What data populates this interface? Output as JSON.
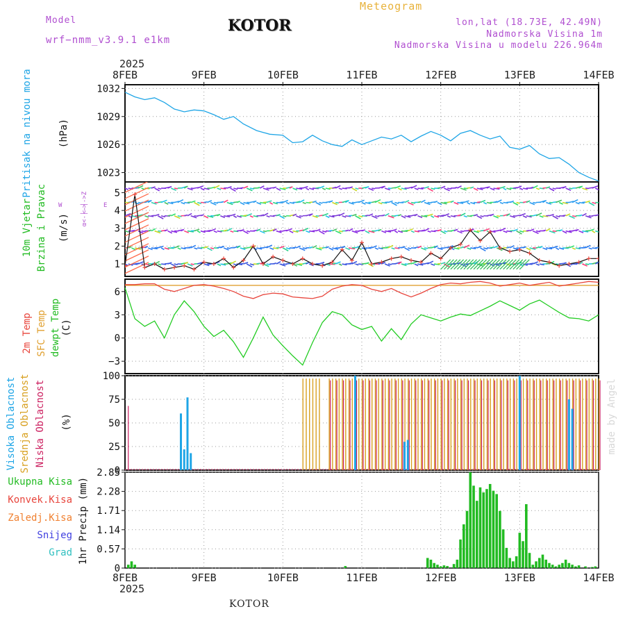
{
  "header": {
    "model_label": "Model",
    "model_value": "wrf−nmm_v3.9.1  e1km",
    "title": "KOTOR",
    "meteogram": "Meteogram",
    "lonlat": "lon,lat (18.73E, 42.49N)",
    "altitude": "Nadmorska Visina 1m",
    "model_altitude": "Nadmorska Visina u modelu 226.964m",
    "footer_city": "KOTOR",
    "watermark": "made by Angel"
  },
  "time_axis": {
    "top_year": "2025",
    "bottom_year": "2025",
    "ticks": [
      "8FEB",
      "9FEB",
      "10FEB",
      "11FEB",
      "12FEB",
      "13FEB",
      "14FEB"
    ]
  },
  "colors": {
    "pressure": "#1ea5e6",
    "temp2m": "#e8453c",
    "sfc": "#e0a030",
    "dewpt": "#22cc22",
    "cloud_high": "#1ea5e6",
    "cloud_mid": "#d8a020",
    "cloud_low": "#cc2060",
    "precip": "#22bb22"
  },
  "panels": {
    "pressure": {
      "label1": "Pritisak na nivou mora",
      "unit": "(hPa)"
    },
    "wind": {
      "label1": "10m Vjetar",
      "label2": "Brzina i Pravac",
      "unit": "(m/s)",
      "compass_w": "W",
      "compass_e": "E",
      "compass_z": "<-│->Z",
      "compass_s": "α<-│->",
      "compass_left": "W <-│-> E"
    },
    "temp": {
      "label1": "2m Temp",
      "label2": "SFC Temp",
      "label3": "dewpt Temp",
      "unit": "(C)"
    },
    "cloud": {
      "label1": "Visoka Oblacnost",
      "label2": "Srednja Oblacnost",
      "label3": "Niska Oblacnost",
      "unit": "(%)"
    },
    "precip": {
      "unit": "1hr Precip (mm)",
      "legend": [
        "Ukupna Kisa",
        "Konvek.Kisa",
        "Zaledj.Kisa",
        "Snijeg",
        "Grad"
      ],
      "legend_colors": [
        "#22bb22",
        "#e8453c",
        "#f08030",
        "#4040e0",
        "#30c0c0"
      ]
    }
  },
  "chart_data": [
    {
      "type": "line",
      "name": "pressure",
      "ylim": [
        1022,
        1032.4
      ],
      "yticks": [
        "1032",
        "1029",
        "1026",
        "1023"
      ],
      "ytick_values": [
        1032,
        1029,
        1026,
        1023
      ],
      "x_hours": [
        0,
        3,
        6,
        9,
        12,
        15,
        18,
        21,
        24,
        27,
        30,
        33,
        36,
        40,
        44,
        48,
        51,
        54,
        57,
        60,
        63,
        66,
        69,
        72,
        75,
        78,
        81,
        84,
        87,
        90,
        93,
        96,
        99,
        102,
        105,
        108,
        111,
        114,
        117,
        120,
        123,
        126,
        129,
        132,
        135,
        138,
        141,
        144
      ],
      "values": [
        1031.6,
        1031.1,
        1030.8,
        1031.0,
        1030.5,
        1029.8,
        1029.5,
        1029.7,
        1029.6,
        1029.2,
        1028.7,
        1029.0,
        1028.2,
        1027.5,
        1027.1,
        1027.0,
        1026.2,
        1026.3,
        1027.0,
        1026.4,
        1026.0,
        1025.8,
        1026.5,
        1026.0,
        1026.4,
        1026.8,
        1026.6,
        1027.0,
        1026.3,
        1026.9,
        1027.4,
        1027.0,
        1026.4,
        1027.2,
        1027.5,
        1027.0,
        1026.6,
        1026.9,
        1025.7,
        1025.5,
        1025.9,
        1025.0,
        1024.5,
        1024.6,
        1023.9,
        1023.0,
        1022.5,
        1022.1
      ]
    },
    {
      "type": "line",
      "name": "wind",
      "ylim": [
        0.3,
        5.6
      ],
      "yticks": [
        "5",
        "4",
        "3",
        "2",
        "1"
      ],
      "ytick_values": [
        5,
        4,
        3,
        2,
        1
      ],
      "barb_rows": [
        1,
        1.9,
        2.85,
        3.7,
        4.45,
        5.25
      ],
      "x_hours": [
        0,
        3,
        6,
        9,
        12,
        15,
        18,
        21,
        24,
        27,
        30,
        33,
        36,
        39,
        42,
        45,
        48,
        51,
        54,
        57,
        60,
        63,
        66,
        69,
        72,
        75,
        78,
        81,
        84,
        87,
        90,
        93,
        96,
        99,
        102,
        105,
        108,
        111,
        114,
        117,
        120,
        123,
        126,
        129,
        132,
        135,
        138,
        141,
        144
      ],
      "values": [
        0.9,
        4.9,
        0.8,
        1.0,
        0.7,
        0.8,
        0.9,
        0.7,
        1.1,
        1.0,
        1.3,
        0.8,
        1.2,
        2.0,
        1.0,
        1.4,
        1.2,
        1.0,
        1.3,
        1.0,
        0.9,
        1.1,
        1.8,
        1.2,
        2.2,
        1.0,
        1.1,
        1.3,
        1.4,
        1.2,
        1.1,
        1.6,
        1.3,
        1.9,
        2.1,
        2.9,
        2.3,
        2.8,
        1.9,
        1.7,
        1.8,
        1.6,
        1.2,
        1.1,
        0.9,
        1.0,
        1.1,
        1.3,
        1.3
      ]
    },
    {
      "type": "line",
      "name": "temperature",
      "ylim": [
        -4.6,
        7.6
      ],
      "yticks": [
        "6",
        "3",
        "0",
        "−3"
      ],
      "ytick_values": [
        6,
        3,
        0,
        -3
      ],
      "sfc_value": 6.8,
      "x_hours": [
        0,
        3,
        6,
        9,
        12,
        15,
        18,
        21,
        24,
        27,
        30,
        33,
        36,
        39,
        42,
        45,
        48,
        51,
        54,
        57,
        60,
        63,
        66,
        69,
        72,
        75,
        78,
        81,
        84,
        87,
        90,
        93,
        96,
        99,
        102,
        105,
        108,
        111,
        114,
        117,
        120,
        123,
        126,
        129,
        132,
        135,
        138,
        141,
        144
      ],
      "temp2m": [
        6.9,
        6.9,
        7.0,
        7.0,
        6.3,
        6.0,
        6.4,
        6.8,
        6.9,
        6.7,
        6.4,
        6.0,
        5.4,
        5.1,
        5.6,
        5.8,
        5.7,
        5.3,
        5.2,
        5.1,
        5.4,
        6.3,
        6.7,
        6.9,
        6.8,
        6.3,
        6.0,
        6.4,
        5.8,
        5.3,
        5.8,
        6.4,
        6.9,
        7.1,
        7.0,
        7.2,
        7.3,
        7.1,
        6.7,
        6.9,
        7.1,
        6.8,
        7.0,
        7.2,
        6.7,
        6.9,
        7.1,
        7.3,
        7.2
      ],
      "dewpt": [
        6.5,
        2.5,
        1.5,
        2.2,
        0.0,
        3.0,
        4.8,
        3.4,
        1.5,
        0.2,
        1.0,
        -0.5,
        -2.5,
        0.0,
        2.7,
        0.4,
        -1.0,
        -2.3,
        -3.5,
        -0.6,
        2.0,
        3.4,
        3.0,
        1.7,
        1.1,
        1.5,
        -0.4,
        1.2,
        -0.2,
        1.8,
        3.0,
        2.6,
        2.2,
        2.7,
        3.1,
        2.9,
        3.5,
        4.1,
        4.8,
        4.2,
        3.6,
        4.4,
        4.9,
        4.1,
        3.3,
        2.6,
        2.5,
        2.2,
        3.0
      ]
    },
    {
      "type": "bar",
      "name": "cloud_cover",
      "ylim": [
        0,
        100
      ],
      "yticks": [
        "100",
        "75",
        "50",
        "25",
        "0"
      ],
      "ytick_values": [
        100,
        75,
        50,
        25,
        0
      ],
      "high": [
        {
          "h": 1,
          "v": 68
        },
        {
          "h": 17,
          "v": 60
        },
        {
          "h": 18,
          "v": 22
        },
        {
          "h": 19,
          "v": 77
        },
        {
          "h": 20,
          "v": 18
        },
        {
          "h": 70,
          "v": 100
        },
        {
          "h": 85,
          "v": 30
        },
        {
          "h": 86,
          "v": 32
        },
        {
          "h": 120,
          "v": 100
        },
        {
          "h": 135,
          "v": 75
        },
        {
          "h": 136,
          "v": 65
        }
      ],
      "mid_start": 54,
      "mid_end": 144,
      "mid_value": 97,
      "low_start": 62,
      "low_end": 144,
      "low_value": 95
    },
    {
      "type": "bar",
      "name": "precip_1hr",
      "ylim": [
        0,
        2.85
      ],
      "yticks": [
        "2.85",
        "2.28",
        "1.71",
        "1.14",
        "0.57",
        "0"
      ],
      "ytick_values": [
        2.85,
        2.28,
        1.71,
        1.14,
        0.57,
        0
      ],
      "bars": [
        [
          1,
          0.1
        ],
        [
          2,
          0.2
        ],
        [
          3,
          0.1
        ],
        [
          67,
          0.06
        ],
        [
          92,
          0.3
        ],
        [
          93,
          0.25
        ],
        [
          94,
          0.15
        ],
        [
          95,
          0.1
        ],
        [
          96,
          0.05
        ],
        [
          97,
          0.08
        ],
        [
          98,
          0.06
        ],
        [
          100,
          0.12
        ],
        [
          101,
          0.25
        ],
        [
          102,
          0.85
        ],
        [
          103,
          1.3
        ],
        [
          104,
          1.7
        ],
        [
          105,
          2.85
        ],
        [
          106,
          2.45
        ],
        [
          107,
          2.0
        ],
        [
          108,
          2.4
        ],
        [
          109,
          2.25
        ],
        [
          110,
          2.35
        ],
        [
          111,
          2.5
        ],
        [
          112,
          2.3
        ],
        [
          113,
          2.2
        ],
        [
          114,
          1.7
        ],
        [
          115,
          1.15
        ],
        [
          116,
          0.6
        ],
        [
          117,
          0.3
        ],
        [
          118,
          0.2
        ],
        [
          119,
          0.35
        ],
        [
          120,
          1.05
        ],
        [
          121,
          0.8
        ],
        [
          122,
          1.9
        ],
        [
          123,
          0.45
        ],
        [
          124,
          0.1
        ],
        [
          125,
          0.2
        ],
        [
          126,
          0.3
        ],
        [
          127,
          0.4
        ],
        [
          128,
          0.25
        ],
        [
          129,
          0.15
        ],
        [
          130,
          0.1
        ],
        [
          131,
          0.05
        ],
        [
          132,
          0.1
        ],
        [
          133,
          0.15
        ],
        [
          134,
          0.25
        ],
        [
          135,
          0.15
        ],
        [
          136,
          0.1
        ],
        [
          137,
          0.05
        ],
        [
          138,
          0.08
        ],
        [
          140,
          0.05
        ],
        [
          142,
          0.03
        ],
        [
          143,
          0.05
        ]
      ]
    }
  ]
}
